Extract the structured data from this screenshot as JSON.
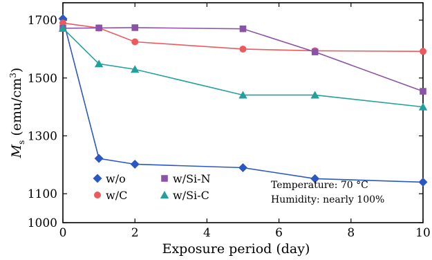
{
  "chart_data": {
    "type": "line",
    "xlabel": "Exposure period  (day)",
    "ylabel": {
      "main": "M",
      "sub": "s",
      "unit": " (emu/cm",
      "sup": "3",
      "close": ")"
    },
    "xlim": [
      0,
      10
    ],
    "ylim": [
      1000,
      1760
    ],
    "xticks": [
      0,
      2,
      4,
      6,
      8,
      10
    ],
    "yticks": [
      1000,
      1100,
      1300,
      1500,
      1700
    ],
    "grid": false,
    "legend_position": "bottom-left",
    "series": [
      {
        "name": "w/o",
        "color": "#2b57c4",
        "marker": "diamond",
        "x": [
          0,
          1,
          2,
          5,
          7,
          10
        ],
        "y": [
          1705,
          1222,
          1202,
          1190,
          1152,
          1140
        ]
      },
      {
        "name": "w/C",
        "color": "#ec5a5d",
        "marker": "circle",
        "x": [
          0,
          1,
          2,
          5,
          7,
          10
        ],
        "y": [
          1690,
          1673,
          1625,
          1600,
          1594,
          1592
        ]
      },
      {
        "name": "w/Si-N",
        "color": "#8b52a8",
        "marker": "square",
        "x": [
          0,
          1,
          2,
          5,
          7,
          10
        ],
        "y": [
          1672,
          1673,
          1674,
          1670,
          1590,
          1454
        ]
      },
      {
        "name": "w/Si-C",
        "color": "#22a09b",
        "marker": "triangle",
        "x": [
          0,
          1,
          2,
          5,
          7,
          10
        ],
        "y": [
          1672,
          1549,
          1530,
          1441,
          1441,
          1400
        ]
      }
    ],
    "annotations": [
      "Temperature: 70 °C",
      "Humidity: nearly 100%"
    ]
  }
}
